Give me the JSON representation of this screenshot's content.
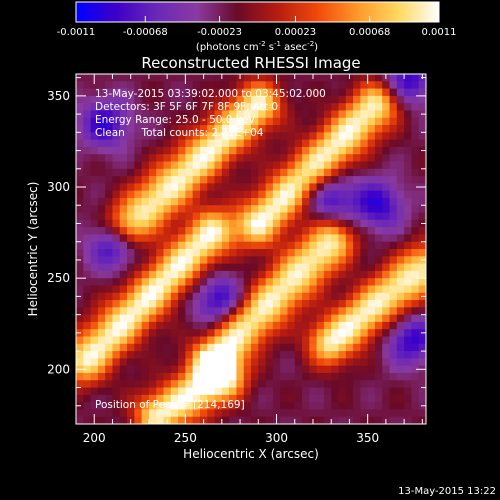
{
  "colorbar": {
    "tick_labels": [
      "-0.0011",
      "-0.00068",
      "-0.00023",
      "0.00023",
      "0.00068",
      "0.0011"
    ],
    "tick_values": [
      -0.0011,
      -0.00068,
      -0.00023,
      0.00023,
      0.00068,
      0.0011
    ],
    "range": [
      -0.0011,
      0.0011
    ],
    "unit_label": "(photons cm",
    "unit_exp1": "-2",
    "unit_mid": " s",
    "unit_exp2": "-1",
    "unit_tail": " asec",
    "unit_exp3": "-2",
    "unit_close": ")",
    "colors": [
      "#0000ff",
      "#3d00c8",
      "#6a28b8",
      "#8a3aa0",
      "#6a0a28",
      "#b81c10",
      "#f04a0a",
      "#ff9a2a",
      "#ffd860",
      "#ffffff"
    ]
  },
  "chart_data": {
    "type": "heatmap",
    "title": "Reconstructed RHESSI Image",
    "xlabel": "Heliocentric X (arcsec)",
    "ylabel": "Heliocentric Y (arcsec)",
    "xlim": [
      190,
      382
    ],
    "ylim": [
      170,
      362
    ],
    "x_ticks": [
      200,
      250,
      300,
      350
    ],
    "x_tick_labels": [
      "200",
      "250",
      "300",
      "350"
    ],
    "y_ticks": [
      200,
      250,
      300,
      350
    ],
    "y_tick_labels": [
      "200",
      "250",
      "300",
      "350"
    ],
    "info_lines": [
      "13-May-2015 03:39:02.000 to 03:45:02.000",
      "Detectors: 3F 5F 6F 7F 8F 9F, Att 0",
      "Energy Range: 25.0 - 50.0 keV",
      "Clean     Total counts: 2.21E+04"
    ],
    "peak_label": "Position of Peak = [214,169]",
    "peak": [
      214,
      169
    ],
    "features": {
      "bright_bands": [
        {
          "x0": 220,
          "y0": 280,
          "x1": 290,
          "y1": 345
        },
        {
          "x0": 290,
          "y0": 280,
          "x1": 355,
          "y1": 345
        },
        {
          "x0": 195,
          "y0": 205,
          "x1": 265,
          "y1": 275
        },
        {
          "x0": 265,
          "y0": 205,
          "x1": 330,
          "y1": 270
        },
        {
          "x0": 330,
          "y0": 215,
          "x1": 380,
          "y1": 255
        },
        {
          "x0": 235,
          "y0": 175,
          "x1": 270,
          "y1": 195
        }
      ],
      "dark_blue_spots": [
        [
          206,
          335
        ],
        [
          211,
          268
        ],
        [
          329,
          294
        ],
        [
          356,
          290
        ],
        [
          372,
          358
        ],
        [
          268,
          238
        ],
        [
          374,
          216
        ]
      ]
    }
  },
  "footer": {
    "timestamp": "13-May-2015 13:22"
  }
}
